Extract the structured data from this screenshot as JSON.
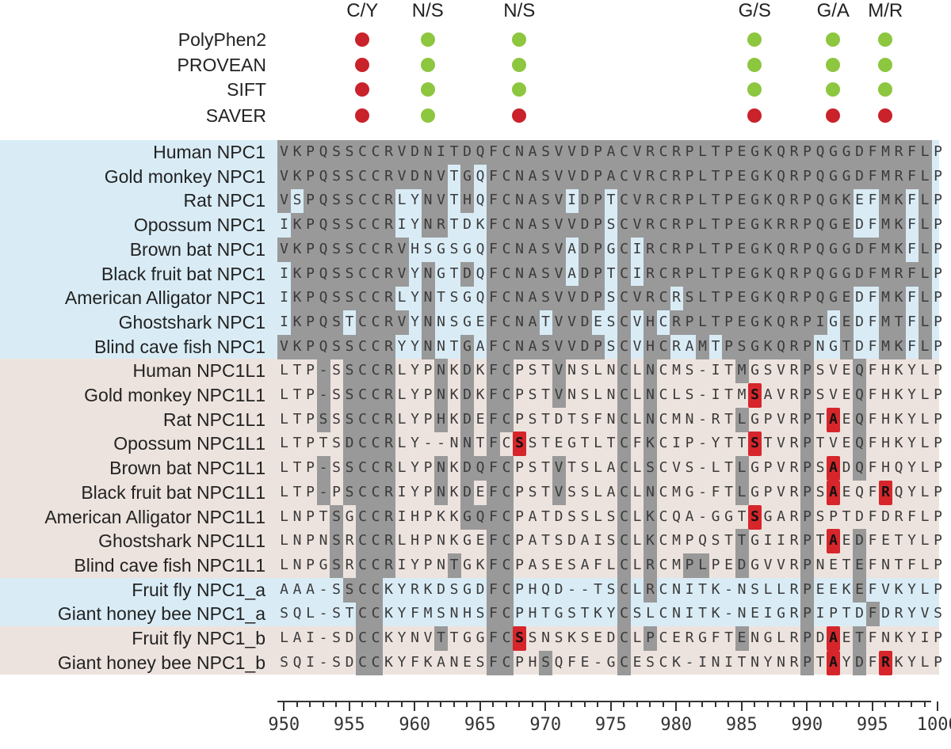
{
  "header": {
    "substitutions": [
      {
        "label": "C/Y",
        "col": 6
      },
      {
        "label": "N/S",
        "col": 11
      },
      {
        "label": "N/S",
        "col": 18
      },
      {
        "label": "G/S",
        "col": 36
      },
      {
        "label": "G/A",
        "col": 42
      },
      {
        "label": "M/R",
        "col": 46
      }
    ],
    "tools": [
      "PolyPhen2",
      "PROVEAN",
      "SIFT",
      "SAVER"
    ],
    "predictions": [
      [
        "damaging",
        "benign",
        "benign",
        "benign",
        "benign",
        "benign"
      ],
      [
        "damaging",
        "benign",
        "benign",
        "benign",
        "benign",
        "benign"
      ],
      [
        "damaging",
        "benign",
        "benign",
        "benign",
        "benign",
        "benign"
      ],
      [
        "damaging",
        "benign",
        "damaging",
        "damaging",
        "damaging",
        "damaging"
      ]
    ],
    "colors": {
      "damaging": "#c9222a",
      "benign": "#8dc63f"
    }
  },
  "alignment": {
    "groups": [
      {
        "from": 0,
        "to": 8,
        "color": "#d9ecf6"
      },
      {
        "from": 9,
        "to": 17,
        "color": "#ede3de"
      },
      {
        "from": 18,
        "to": 19,
        "color": "#d9ecf6"
      },
      {
        "from": 20,
        "to": 21,
        "color": "#ede3de"
      }
    ],
    "rows": [
      {
        "name": "Human NPC1",
        "seq": "VKPQSSCCRVDNITDQFCNASVVDPACVRCRPLTPEGKQRPQGGDFMRFLP",
        "shade": "11111111111111111111111111111111111111111111111111"
      },
      {
        "name": "Gold monkey NPC1",
        "seq": "VKPQSSCCRVDNVTGQFCNASVVDPACVRCRPLTPEGKQRPQGGDFMRFLP",
        "shade": "11111111111110101111111111111111111111111111111111"
      },
      {
        "name": "Rat NPC1",
        "seq": "VSPQSSCCRLYNVTHQFCNASVIDPTCVRCRPLTPEGKQRPQGKEFMKFLP",
        "shade": "10111111100110101111110110111111111111111111001101"
      },
      {
        "name": "Opossum NPC1",
        "seq": "IKPQSSCCRIYNRTDKFCNASVVDPSCVRCRPLTPEGKRRPQGEDFMKFLP",
        "shade": "01111111100110001111111110111111111111111111001101"
      },
      {
        "name": "Brown bat NPC1",
        "seq": "VKPQSSCCRVHSGSGQFCNASVADPGCIRCRPLTPEGKQRPQGGDFMKFLP",
        "shade": "11111111110000001111110110101111111111111111111101"
      },
      {
        "name": "Black fruit bat NPC1",
        "seq": "IKPQSSCCRVYNGTDQFCNASVADPTCIRCRPLTPEGKQRPQGGDFMRFLP",
        "shade": "01111111110100101111110110101111111111111111111111"
      },
      {
        "name": "American Alligator NPC1",
        "seq": "IKPQSSCCRLYNTSGQFCNASVVDPSCVRCRSLTPEGKQRPQGEDFMKFLP",
        "shade": "01111111100100001111111110111101111111111111001101"
      },
      {
        "name": "Ghostshark NPC1",
        "seq": "IKPQSTCCRVYNNSGEFCNATVVDESCVHCRPLTPEGKQRPIGEDFMTFLP",
        "shade": "01111011110100001111011100101011111111111101001101"
      },
      {
        "name": "Blind cave fish NPC1",
        "seq": "VKPQSSCCRYYNNTGAFCNASVVDPSCVHCRAMTPSGKQRPNGTDFMKFLP",
        "shade": "11111111100100101111111110101100101111111001001101"
      },
      {
        "name": "Human NPC1L1",
        "seq": "LTP-SSCCRLYPNKDKFCPSTVNSLNCLNCMS-ITMGSVRPSVEQFHKYLP",
        "shade": "00010111100010101100010000101000000100001000100000"
      },
      {
        "name": "Gold monkey NPC1L1",
        "seq": "LTP-SSCCRLYPNKDKFCPSTVNSLNCLNCLS-ITMSAVRPSVEQFHKYLP",
        "shade": "00010111100010101100010000101000000000001000100000"
      },
      {
        "name": "Rat NPC1L1",
        "seq": "LTPSSSCCRLYPHKDEFCPSTDTSFNCLNCMN-RTLGPVRPTAEQFHKYLP",
        "shade": "00010111100010101100000000101000000100001000100000"
      },
      {
        "name": "Opossum NPC1L1",
        "seq": "LTPTSDCCRLY--NNTFCSSTEGTLTCFKCIP-YTTSTVRPTVEQFHKYLP",
        "shade": "00000111100000101000000000101000000000001000100000"
      },
      {
        "name": "Brown bat NPC1L1",
        "seq": "LTP-SSCCRLYPNKDQFCPSTVTSLACLSCVS-LTLGPVRPSADQFHQYLP",
        "shade": "00010111100010111100010000101000000100001000100000"
      },
      {
        "name": "Black fruit bat NPC1L1",
        "seq": "LTP-PSCCRIYPNKDEFCPSTVSSLACLNCMG-FTLGPVRPSAEQFRQYLP",
        "shade": "00010111100010101100010000101000000100001000000000"
      },
      {
        "name": "American Alligator NPC1L1",
        "seq": "LNPTSGCCRIHPKKGQFCPATDSSLSCLKCQA-GGTSGARPSPTDFDRFLP",
        "shade": "00001011100000111100000000101000000000001000000000"
      },
      {
        "name": "Ghostshark NPC1L1",
        "seq": "LNPNSRCCRLHPNKGEFCPATSDAISCLKCMPQSTTGIIRPTAEDFETYLP",
        "shade": "00001011100000001100000000101000000100001000100000"
      },
      {
        "name": "Blind cave fish NPC1L1",
        "seq": "LNPGSRCCRIYPNTGKFCPASESAFLCLRCMPLPEDGVVRPNETEFNTFLP",
        "shade": "00001011100001001100000000101001100100001000100000"
      },
      {
        "name": "Fruit fly NPC1_a",
        "seq": "AAA-SSCCKYRKDSGDFCPHQD--TSCLRCNITK-NSLLRPEEKEFVKYLP",
        "shade": "00000111000000001100000000101000000000001000100000"
      },
      {
        "name": "Giant honey bee NPC1_a",
        "seq": "SQL-STCCKYFMSNHSFCPHTGSTKYCSLCNITK-NEIGRPIPTDFDRYVS",
        "shade": "00000011000000001100000000100000000000001000010000"
      },
      {
        "name": "Fruit fly NPC1_b",
        "seq": "LAI-SDCCKYNVTTGGFCSSNSKSEDCLPCERGFTENGLRPDAETFNKYIP",
        "shade": "00000011000010001100000000101000000100001000100000"
      },
      {
        "name": "Giant honey bee NPC1_b",
        "seq": "SQI-SDCCKYFKANESFCPHSQFE-GCESCK-INITNYNRPTAYDFRKYLP",
        "shade": "00000011000000001100100000100000000000001000100000"
      }
    ],
    "highlights": [
      {
        "row": 10,
        "col": 36
      },
      {
        "row": 11,
        "col": 42
      },
      {
        "row": 12,
        "col": 18
      },
      {
        "row": 12,
        "col": 36
      },
      {
        "row": 13,
        "col": 42
      },
      {
        "row": 14,
        "col": 42
      },
      {
        "row": 14,
        "col": 46
      },
      {
        "row": 15,
        "col": 36
      },
      {
        "row": 16,
        "col": 42
      },
      {
        "row": 20,
        "col": 18
      },
      {
        "row": 20,
        "col": 42
      },
      {
        "row": 21,
        "col": 42
      },
      {
        "row": 21,
        "col": 46
      }
    ],
    "colors": {
      "shade": "#999999",
      "highlight": "#d6262b",
      "text": "#3a3a3a",
      "highlight_text": "#111111"
    }
  },
  "axis": {
    "start": 950,
    "end": 1000,
    "labels": [
      "950",
      "955",
      "960",
      "965",
      "970",
      "975",
      "980",
      "985",
      "990",
      "995",
      "1000"
    ]
  }
}
